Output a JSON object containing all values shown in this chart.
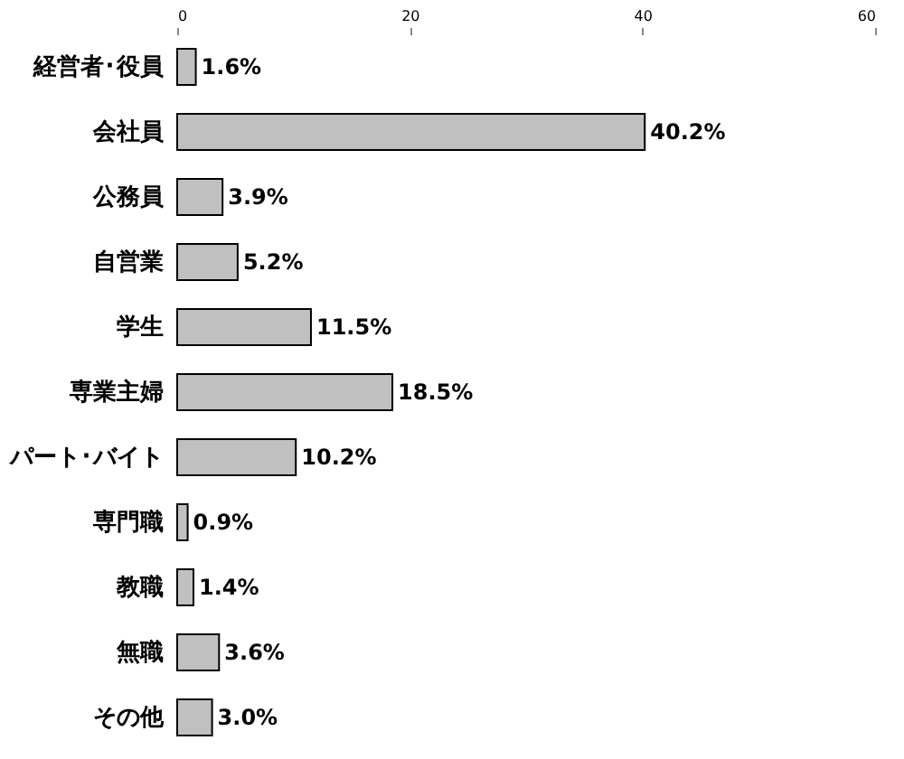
{
  "chart_data": {
    "type": "bar",
    "orientation": "horizontal",
    "categories": [
      "経営者･役員",
      "会社員",
      "公務員",
      "自営業",
      "学生",
      "専業主婦",
      "パート･バイト",
      "専門職",
      "教職",
      "無職",
      "その他"
    ],
    "values": [
      1.6,
      40.2,
      3.9,
      5.2,
      11.5,
      18.5,
      10.2,
      0.9,
      1.4,
      3.6,
      3.0
    ],
    "value_labels": [
      "1.6%",
      "40.2%",
      "3.9%",
      "5.2%",
      "11.5%",
      "18.5%",
      "10.2%",
      "0.9%",
      "1.4%",
      "3.6%",
      "3.0%"
    ],
    "color": "#c0c0c0",
    "xlim": [
      0,
      60
    ],
    "xticks": [
      0,
      20,
      40,
      60
    ],
    "grid": false
  }
}
